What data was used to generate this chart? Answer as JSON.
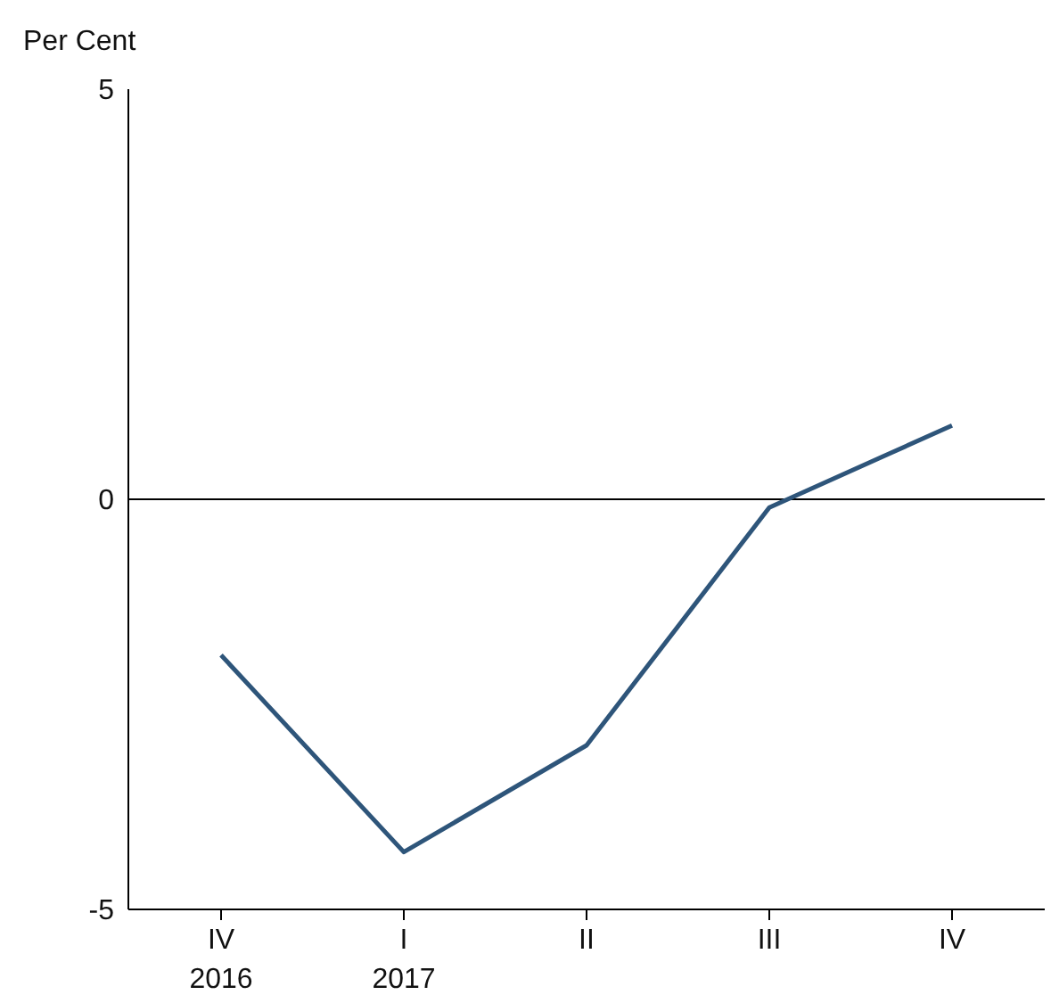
{
  "chart_data": {
    "type": "line",
    "ylabel": "Per Cent",
    "categories": [
      "IV\n2016",
      "I\n2017",
      "II",
      "III",
      "IV"
    ],
    "series": [
      {
        "color": "#2e557a",
        "values": [
          -1.9,
          -4.3,
          -3.0,
          -0.1,
          0.9
        ]
      }
    ],
    "ylim": [
      -5,
      5
    ],
    "yticks": [
      -5,
      0,
      5
    ],
    "grid": false,
    "legend": false,
    "marker": "none",
    "line_style": "solid",
    "ref_lines": [
      {
        "axis": "y",
        "value": 0,
        "color": "#000000"
      }
    ]
  }
}
